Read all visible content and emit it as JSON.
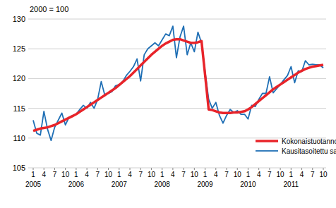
{
  "chart_data": {
    "type": "line",
    "subtitle": "2000 = 100",
    "categories": [
      "1",
      null,
      null,
      "4",
      null,
      null,
      "7",
      null,
      null,
      "10",
      null,
      null,
      "1",
      null,
      null,
      "4",
      null,
      null,
      "7",
      null,
      null,
      "10",
      null,
      null,
      "1",
      null,
      null,
      "4",
      null,
      null,
      "7",
      null,
      null,
      "10",
      null,
      null,
      "1",
      null,
      null,
      "4",
      null,
      null,
      "7",
      null,
      null,
      "10",
      null,
      null,
      "1",
      null,
      null,
      "4",
      null,
      null,
      "7",
      null,
      null,
      "10",
      null,
      null,
      "1",
      null,
      null,
      "4",
      null,
      null,
      "7",
      null,
      null,
      "10",
      null,
      null,
      "1",
      null,
      null,
      "4",
      null,
      null,
      "7",
      null,
      null,
      "10"
    ],
    "year_labels": [
      "2005",
      "2006",
      "2007",
      "2008",
      "2009",
      "2010",
      "2011"
    ],
    "series": [
      {
        "name": "Kokonaistuotannon trendi",
        "color": "#e8242a",
        "values": [
          111.2,
          111.4,
          111.6,
          111.7,
          111.8,
          112.0,
          112.2,
          112.5,
          112.8,
          113.1,
          113.4,
          113.7,
          114.0,
          114.4,
          114.8,
          115.2,
          115.6,
          116.0,
          116.4,
          116.8,
          117.2,
          117.6,
          118.0,
          118.4,
          118.9,
          119.4,
          119.9,
          120.4,
          121.0,
          121.6,
          122.2,
          122.8,
          123.4,
          124.0,
          124.5,
          125.0,
          125.5,
          125.9,
          126.2,
          126.5,
          126.6,
          126.6,
          126.4,
          126.2,
          126.0,
          126.0,
          126.1,
          126.3,
          120.6,
          114.8,
          114.7,
          114.5,
          114.3,
          114.2,
          114.2,
          114.2,
          114.3,
          114.3,
          114.4,
          114.5,
          114.8,
          115.2,
          115.7,
          116.2,
          116.7,
          117.2,
          117.7,
          118.2,
          118.6,
          119.0,
          119.4,
          119.8,
          120.2,
          120.6,
          121.0,
          121.3,
          121.6,
          121.8,
          122.0,
          122.1,
          122.2,
          122.3
        ]
      },
      {
        "name": "Kausitasoitettu sarja",
        "color": "#1f6fb5",
        "values": [
          113.0,
          110.8,
          110.5,
          114.5,
          111.5,
          109.6,
          111.8,
          113.0,
          114.2,
          112.2,
          113.5,
          113.8,
          114.0,
          114.8,
          115.5,
          115.0,
          116.0,
          115.0,
          116.5,
          119.5,
          117.2,
          117.5,
          117.8,
          118.8,
          119.0,
          119.5,
          120.5,
          121.2,
          122.0,
          123.3,
          119.6,
          124.0,
          125.0,
          125.5,
          126.0,
          125.5,
          126.5,
          127.5,
          127.2,
          128.8,
          123.5,
          127.0,
          128.8,
          124.0,
          126.0,
          124.5,
          127.8,
          126.0,
          121.2,
          116.5,
          115.0,
          116.0,
          113.8,
          112.5,
          113.8,
          114.8,
          114.3,
          114.6,
          114.0,
          114.0,
          113.2,
          115.5,
          115.3,
          116.5,
          117.5,
          117.5,
          120.3,
          117.6,
          118.3,
          119.0,
          119.8,
          120.5,
          122.0,
          119.3,
          121.3,
          121.2,
          123.0,
          122.3,
          122.4,
          122.3,
          122.3,
          121.8
        ]
      }
    ],
    "ylim": [
      105,
      130
    ],
    "yticks": [
      105,
      110,
      115,
      120,
      125,
      130
    ],
    "grid": true,
    "legend": "lower right"
  }
}
